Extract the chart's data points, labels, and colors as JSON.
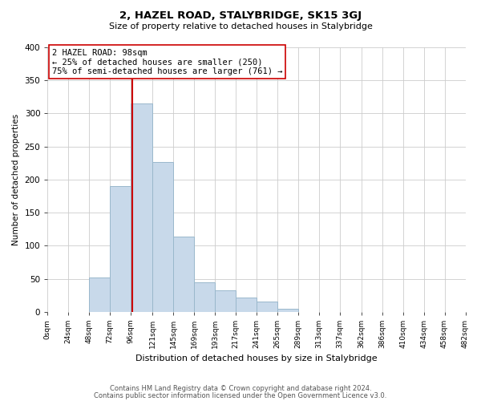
{
  "title": "2, HAZEL ROAD, STALYBRIDGE, SK15 3GJ",
  "subtitle": "Size of property relative to detached houses in Stalybridge",
  "xlabel": "Distribution of detached houses by size in Stalybridge",
  "ylabel": "Number of detached properties",
  "bar_edges": [
    0,
    24,
    48,
    72,
    96,
    121,
    145,
    169,
    193,
    217,
    241,
    265,
    289,
    313,
    337,
    362,
    386,
    410,
    434,
    458,
    482
  ],
  "bar_heights": [
    0,
    0,
    52,
    190,
    315,
    227,
    114,
    44,
    33,
    21,
    16,
    5,
    0,
    0,
    0,
    0,
    0,
    0,
    0,
    0
  ],
  "bar_color": "#c8d9ea",
  "bar_edge_color": "#9ab8cc",
  "property_line_x": 98,
  "property_line_color": "#cc0000",
  "annotation_line1": "2 HAZEL ROAD: 98sqm",
  "annotation_line2": "← 25% of detached houses are smaller (250)",
  "annotation_line3": "75% of semi-detached houses are larger (761) →",
  "annotation_box_color": "#ffffff",
  "annotation_box_edge": "#cc0000",
  "ylim": [
    0,
    400
  ],
  "xlim": [
    0,
    482
  ],
  "yticks": [
    0,
    50,
    100,
    150,
    200,
    250,
    300,
    350,
    400
  ],
  "tick_labels": [
    "0sqm",
    "24sqm",
    "48sqm",
    "72sqm",
    "96sqm",
    "121sqm",
    "145sqm",
    "169sqm",
    "193sqm",
    "217sqm",
    "241sqm",
    "265sqm",
    "289sqm",
    "313sqm",
    "337sqm",
    "362sqm",
    "386sqm",
    "410sqm",
    "434sqm",
    "458sqm",
    "482sqm"
  ],
  "tick_positions": [
    0,
    24,
    48,
    72,
    96,
    121,
    145,
    169,
    193,
    217,
    241,
    265,
    289,
    313,
    337,
    362,
    386,
    410,
    434,
    458,
    482
  ],
  "footer_line1": "Contains HM Land Registry data © Crown copyright and database right 2024.",
  "footer_line2": "Contains public sector information licensed under the Open Government Licence v3.0.",
  "background_color": "#ffffff",
  "grid_color": "#cccccc"
}
